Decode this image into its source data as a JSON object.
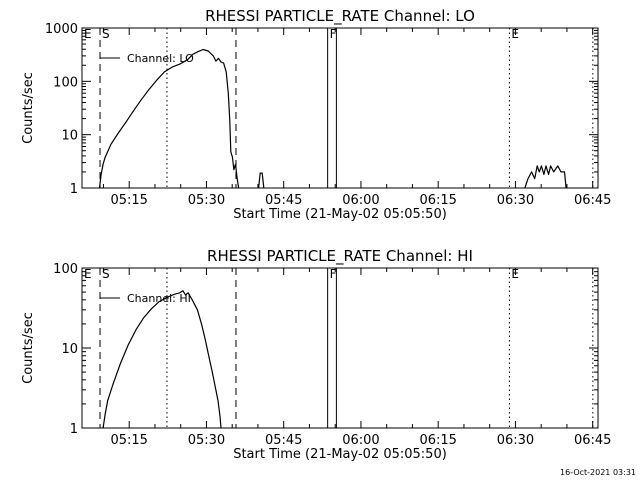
{
  "chart_data": [
    {
      "type": "line",
      "title": "RHESSI PARTICLE_RATE Channel: LO",
      "xlabel": "Start Time (21-May-02 05:05:50)",
      "ylabel": "Counts/sec",
      "x_unit": "minutes after 05:05:50 UT",
      "xlim": [
        0,
        100.2
      ],
      "ylim": [
        1,
        1000
      ],
      "yscale": "log",
      "x_tick_labels": [
        "05:15",
        "05:30",
        "05:45",
        "06:00",
        "06:15",
        "06:30",
        "06:45"
      ],
      "y_tick_labels": [
        "1",
        "10",
        "100",
        "1000"
      ],
      "legend": {
        "label": "Channel: LO",
        "placement": "top-left"
      },
      "markers": [
        {
          "label": "E",
          "x": 0.0,
          "style": "dotted"
        },
        {
          "label": "S",
          "x": 3.5,
          "style": "dashed"
        },
        {
          "label": "",
          "x": 16.5,
          "style": "dotted"
        },
        {
          "label": "",
          "x": 29.9,
          "style": "dashed"
        },
        {
          "label": "F",
          "x": 47.7,
          "style": "solid"
        },
        {
          "label": "",
          "x": 49.4,
          "style": "solid"
        },
        {
          "label": "E",
          "x": 83.0,
          "style": "dotted"
        },
        {
          "label": "",
          "x": 99.2,
          "style": "dotted"
        }
      ],
      "series": [
        {
          "segments": [
            [
              [
                3.4,
                1.0
              ],
              [
                3.7,
                1.8
              ],
              [
                4.1,
                2.8
              ],
              [
                4.5,
                3.8
              ],
              [
                4.9,
                4.6
              ],
              [
                5.6,
                6.5
              ],
              [
                7.0,
                10.5
              ],
              [
                8.5,
                17
              ],
              [
                10.0,
                28
              ],
              [
                11.5,
                45
              ],
              [
                13.0,
                70
              ],
              [
                14.5,
                105
              ],
              [
                16.0,
                150
              ],
              [
                17.5,
                185
              ],
              [
                19.0,
                210
              ],
              [
                20.5,
                255
              ],
              [
                21.5,
                320
              ],
              [
                22.5,
                360
              ],
              [
                23.5,
                395
              ],
              [
                24.5,
                370
              ],
              [
                25.5,
                300
              ],
              [
                26.0,
                240
              ],
              [
                26.5,
                270
              ],
              [
                27.0,
                230
              ],
              [
                27.5,
                220
              ],
              [
                28.0,
                150
              ],
              [
                28.4,
                60
              ],
              [
                28.7,
                18
              ],
              [
                28.9,
                4.8
              ],
              [
                29.2,
                3.8
              ],
              [
                29.5,
                2.2
              ],
              [
                29.8,
                2.8
              ],
              [
                30.1,
                1.6
              ],
              [
                30.4,
                1.0
              ]
            ],
            [
              [
                34.3,
                1.0
              ],
              [
                34.6,
                1.9
              ],
              [
                35.0,
                1.9
              ],
              [
                35.3,
                1.0
              ]
            ],
            [
              [
                86.0,
                1.0
              ],
              [
                86.6,
                1.5
              ],
              [
                87.3,
                2.0
              ],
              [
                87.9,
                1.5
              ],
              [
                88.4,
                2.6
              ],
              [
                88.8,
                2.0
              ],
              [
                89.2,
                2.6
              ],
              [
                89.7,
                1.8
              ],
              [
                90.1,
                2.6
              ],
              [
                90.6,
                1.8
              ],
              [
                91.0,
                2.6
              ],
              [
                91.6,
                2.0
              ],
              [
                92.4,
                2.6
              ],
              [
                93.0,
                2.0
              ],
              [
                93.7,
                2.0
              ],
              [
                94.0,
                1.0
              ]
            ]
          ]
        }
      ]
    },
    {
      "type": "line",
      "title": "RHESSI PARTICLE_RATE Channel: HI",
      "xlabel": "Start Time (21-May-02 05:05:50)",
      "ylabel": "Counts/sec",
      "x_unit": "minutes after 05:05:50 UT",
      "xlim": [
        0,
        100.2
      ],
      "ylim": [
        1,
        100
      ],
      "yscale": "log",
      "x_tick_labels": [
        "05:15",
        "05:30",
        "05:45",
        "06:00",
        "06:15",
        "06:30",
        "06:45"
      ],
      "y_tick_labels": [
        "1",
        "10",
        "100"
      ],
      "legend": {
        "label": "Channel: HI",
        "placement": "top-left"
      },
      "markers": [
        {
          "label": "E",
          "x": 0.0,
          "style": "dotted"
        },
        {
          "label": "S",
          "x": 3.5,
          "style": "dashed"
        },
        {
          "label": "",
          "x": 16.5,
          "style": "dotted"
        },
        {
          "label": "",
          "x": 29.9,
          "style": "dashed"
        },
        {
          "label": "F",
          "x": 47.7,
          "style": "solid"
        },
        {
          "label": "",
          "x": 49.4,
          "style": "solid"
        },
        {
          "label": "E",
          "x": 83.0,
          "style": "dotted"
        },
        {
          "label": "",
          "x": 99.2,
          "style": "dotted"
        }
      ],
      "series": [
        {
          "segments": [
            [
              [
                4.1,
                1.0
              ],
              [
                4.5,
                1.5
              ],
              [
                5.0,
                2.2
              ],
              [
                6.0,
                3.5
              ],
              [
                7.5,
                6.5
              ],
              [
                9.0,
                11
              ],
              [
                10.5,
                17
              ],
              [
                12.0,
                24
              ],
              [
                13.5,
                31
              ],
              [
                15.0,
                38
              ],
              [
                16.5,
                43
              ],
              [
                18.0,
                47
              ],
              [
                19.0,
                49
              ],
              [
                19.6,
                52
              ],
              [
                20.1,
                46
              ],
              [
                20.6,
                49
              ],
              [
                21.4,
                40
              ],
              [
                22.4,
                30
              ],
              [
                23.2,
                20
              ],
              [
                23.9,
                13
              ],
              [
                24.6,
                8
              ],
              [
                25.3,
                5
              ],
              [
                25.9,
                3.2
              ],
              [
                26.4,
                2.2
              ],
              [
                26.8,
                1.4
              ],
              [
                27.0,
                1.0
              ]
            ]
          ]
        }
      ]
    }
  ],
  "footer": {
    "timestamp": "16-Oct-2021 03:31"
  }
}
